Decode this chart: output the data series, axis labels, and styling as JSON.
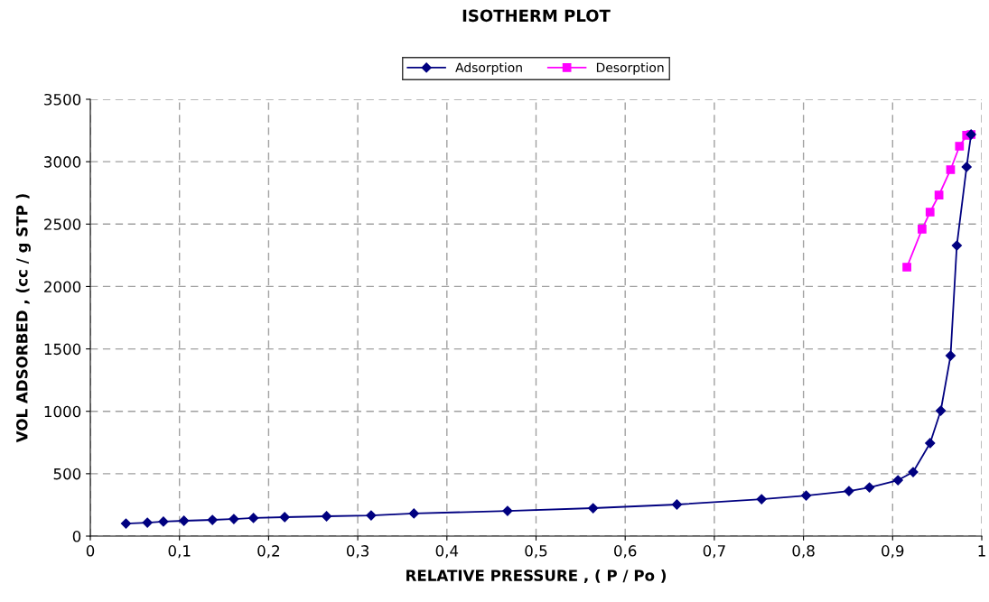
{
  "chart_data": {
    "type": "line",
    "title": "ISOTHERM PLOT",
    "xlabel": "RELATIVE PRESSURE , ( P / Po )",
    "ylabel": "VOL ADSORBED , (cc / g STP )",
    "series": [
      {
        "name": "Adsorption",
        "color": "#000080",
        "marker": "diamond",
        "x": [
          0.04,
          0.064,
          0.082,
          0.105,
          0.137,
          0.161,
          0.183,
          0.218,
          0.265,
          0.315,
          0.363,
          0.468,
          0.564,
          0.658,
          0.753,
          0.803,
          0.851,
          0.874,
          0.906,
          0.923,
          0.942,
          0.954,
          0.965,
          0.972,
          0.983,
          0.988
        ],
        "values": [
          101,
          108,
          116,
          123,
          130,
          137,
          145,
          152,
          159,
          166,
          181,
          202,
          224,
          253,
          296,
          325,
          361,
          390,
          448,
          513,
          745,
          1005,
          1446,
          2328,
          2958,
          3218
        ]
      },
      {
        "name": "Desorption",
        "color": "#ff00ff",
        "marker": "square",
        "x": [
          0.916,
          0.933,
          0.942,
          0.952,
          0.965,
          0.975,
          0.983,
          0.988
        ],
        "values": [
          2155,
          2459,
          2596,
          2733,
          2936,
          3124,
          3211,
          3218
        ]
      }
    ],
    "xlim": [
      0,
      1
    ],
    "ylim": [
      0,
      3500
    ],
    "xticks": [
      0,
      {
        "value": 0.1,
        "label": "0,1"
      },
      {
        "value": 0.2,
        "label": "0,2"
      },
      {
        "value": 0.3,
        "label": "0,3"
      },
      {
        "value": 0.4,
        "label": "0,4"
      },
      {
        "value": 0.5,
        "label": "0,5"
      },
      {
        "value": 0.6,
        "label": "0,6"
      },
      {
        "value": 0.7,
        "label": "0,7"
      },
      {
        "value": 0.8,
        "label": "0,8"
      },
      {
        "value": 0.9,
        "label": "0,9"
      },
      1
    ],
    "yticks": [
      0,
      500,
      1000,
      1500,
      2000,
      2500,
      3000,
      3500
    ],
    "grid": true,
    "legend": "top",
    "line_style": "solid"
  }
}
